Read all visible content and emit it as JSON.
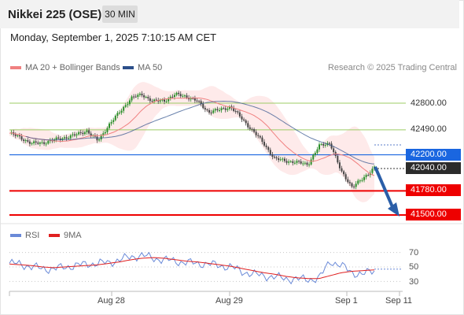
{
  "header": {
    "instrument": "Nikkei 225 (OSE)",
    "timeframe": "30 MIN"
  },
  "datetime": "Monday, September 1, 2025 7:10:15 AM CET",
  "legend": {
    "ma20_label": "MA 20 + Bollinger Bands",
    "ma50_label": "MA 50",
    "credit": "Research © 2025 Trading Central"
  },
  "rsi_legend": {
    "rsi_label": "RSI",
    "ma_label": "9MA"
  },
  "colors": {
    "ma20": "#f08080",
    "ma50": "#2c4f8a",
    "bands": "#fde3e3",
    "up": "#2a8f2a",
    "down": "#444444",
    "resistance": "#9ccc65",
    "pivot": "#1a66e0",
    "support": "#ee0000",
    "arrow": "#2a5ea8",
    "rsi": "#6a8ad8",
    "rsi_ma": "#e02020"
  },
  "chart_data": [
    {
      "type": "line",
      "title": "",
      "series": [
        {
          "name": "MA 20 + Bollinger Bands"
        },
        {
          "name": "MA 50"
        }
      ],
      "x_ticks": [
        "Aug 28",
        "Aug 29",
        "Sep 1",
        "Sep 11"
      ],
      "ylim": [
        41450,
        43000
      ],
      "price_path_approx": [
        42450,
        42400,
        42330,
        42340,
        42370,
        42400,
        42430,
        42480,
        42360,
        42550,
        42700,
        42860,
        42900,
        42820,
        42830,
        42900,
        42880,
        42820,
        42700,
        42720,
        42760,
        42620,
        42480,
        42330,
        42150,
        42130,
        42110,
        42090,
        42300,
        42340,
        42000,
        41830,
        41920,
        42060
      ],
      "levels": [
        {
          "label": "42800.00",
          "value": 42800,
          "kind": "resistance"
        },
        {
          "label": "42490.00",
          "value": 42490,
          "kind": "resistance"
        },
        {
          "label": "42200.00",
          "value": 42200,
          "kind": "pivot"
        },
        {
          "label": "42040.00",
          "value": 42040,
          "kind": "last price"
        },
        {
          "label": "41780.00",
          "value": 41780,
          "kind": "support"
        },
        {
          "label": "41500.00",
          "value": 41500,
          "kind": "support"
        }
      ],
      "forecast_arrow": {
        "from": 42060,
        "to": 41500
      }
    },
    {
      "type": "line",
      "series": [
        {
          "name": "RSI",
          "values": [
            55,
            54,
            50,
            48,
            47,
            50,
            52,
            54,
            55,
            56,
            60,
            64,
            66,
            62,
            60,
            58,
            56,
            55,
            54,
            52,
            50,
            44,
            40,
            38,
            36,
            34,
            33,
            33,
            34,
            58,
            52,
            42,
            40,
            45
          ]
        },
        {
          "name": "9MA",
          "values": [
            54,
            53,
            52,
            50,
            49,
            50,
            51,
            52,
            53,
            55,
            57,
            60,
            62,
            63,
            62,
            60,
            58,
            57,
            55,
            53,
            51,
            48,
            45,
            42,
            40,
            37,
            35,
            34,
            34,
            38,
            42,
            44,
            45,
            46
          ]
        }
      ],
      "y_ticks": [
        "70",
        "50",
        "30"
      ],
      "ylim": [
        20,
        80
      ]
    }
  ]
}
